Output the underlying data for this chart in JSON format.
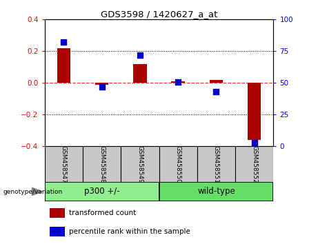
{
  "title": "GDS3598 / 1420627_a_at",
  "samples": [
    "GSM458547",
    "GSM458548",
    "GSM458549",
    "GSM458550",
    "GSM458551",
    "GSM458552"
  ],
  "red_bars": [
    0.22,
    -0.01,
    0.12,
    0.01,
    0.02,
    -0.36
  ],
  "blue_dots": [
    82,
    47,
    72,
    51,
    43,
    3
  ],
  "ylim_left": [
    -0.4,
    0.4
  ],
  "ylim_right": [
    0,
    100
  ],
  "yticks_left": [
    -0.4,
    -0.2,
    0.0,
    0.2,
    0.4
  ],
  "yticks_right": [
    0,
    25,
    50,
    75,
    100
  ],
  "red_color": "#AA0000",
  "blue_color": "#0000CC",
  "hline_color": "#FF3333",
  "dot_size": 28,
  "bar_width": 0.35,
  "legend_red_label": "transformed count",
  "legend_blue_label": "percentile rank within the sample",
  "genotype_label": "genotype/variation",
  "group1_label": "p300 +/-",
  "group2_label": "wild-type",
  "group1_color": "#90EE90",
  "group2_color": "#66DD66",
  "sample_bg": "#C8C8C8"
}
